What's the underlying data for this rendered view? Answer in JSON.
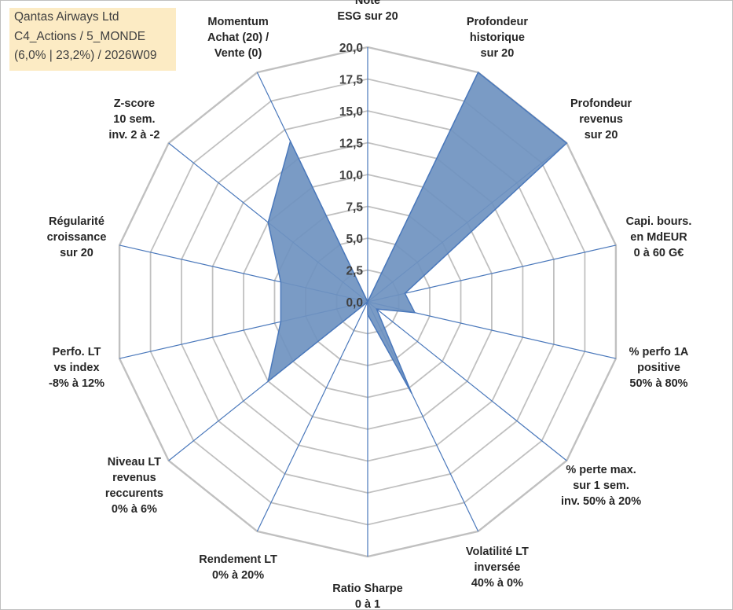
{
  "title_box": {
    "line1": "Qantas Airways Ltd",
    "line2": "C4_Actions / 5_MONDE",
    "line3": "(6,0% | 23,2%) / 2026W09"
  },
  "chart_data": {
    "type": "radar",
    "rmax": 20,
    "ticks": [
      "0,0",
      "2,5",
      "5,0",
      "7,5",
      "10,0",
      "12,5",
      "15,0",
      "17,5",
      "20,0"
    ],
    "axes": [
      {
        "lines": [
          "Note",
          "ESG sur 20"
        ],
        "value": 0.0
      },
      {
        "lines": [
          "Profondeur",
          "historique",
          "sur 20"
        ],
        "value": 20.0
      },
      {
        "lines": [
          "Profondeur",
          "revenus",
          "sur 20"
        ],
        "value": 20.0
      },
      {
        "lines": [
          "Capi. bours.",
          "en MdEUR",
          "0 à 60 G€"
        ],
        "value": 3.0
      },
      {
        "lines": [
          "% perfo 1A",
          "positive",
          "50% à 80%"
        ],
        "value": 3.8
      },
      {
        "lines": [
          "% perte max.",
          "sur 1 sem.",
          "inv. 50% à 20%"
        ],
        "value": 0.9
      },
      {
        "lines": [
          "Volatilité LT",
          "inversée",
          "40% à 0%"
        ],
        "value": 8.0
      },
      {
        "lines": [
          "Ratio Sharpe",
          "0 à 1"
        ],
        "value": 1.0
      },
      {
        "lines": [
          "Rendement LT",
          "0% à 20%"
        ],
        "value": 0.0
      },
      {
        "lines": [
          "Niveau LT",
          "revenus",
          "reccurents",
          "0% à 6%"
        ],
        "value": 10.0
      },
      {
        "lines": [
          "Perfo. LT",
          "vs index",
          "-8% à 12%"
        ],
        "value": 7.0
      },
      {
        "lines": [
          "Régularité",
          "croissance",
          "sur 20"
        ],
        "value": 7.0
      },
      {
        "lines": [
          "Z-score",
          "10 sem.",
          "inv. 2 à -2"
        ],
        "value": 10.0
      },
      {
        "lines": [
          "Momentum",
          "Achat (20) /",
          "Vente (0)"
        ],
        "value": 14.0
      }
    ],
    "series": [
      {
        "name": "Qantas Airways Ltd",
        "color": "#6f93c0",
        "line_color": "#4a78bb"
      }
    ],
    "grid_color": "#c0c0c0",
    "axis_color": "#4a78bb"
  }
}
